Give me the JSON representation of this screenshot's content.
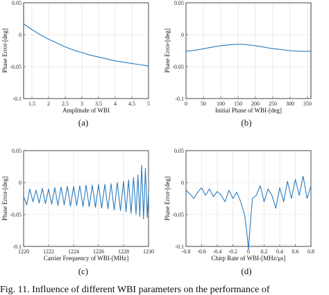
{
  "chart_data": [
    {
      "type": "line",
      "label": "(a)",
      "xlabel": "Amplitude of WBI",
      "ylabel": "Phase Error-[deg]",
      "xlim": [
        1.25,
        5
      ],
      "ylim": [
        -0.1,
        0.05
      ],
      "xticks": [
        "1.5",
        "2",
        "2.5",
        "3",
        "3.5",
        "4",
        "4.5",
        "5"
      ],
      "xtick_values": [
        1.5,
        2,
        2.5,
        3,
        3.5,
        4,
        4.5,
        5
      ],
      "yticks": [
        "0.05",
        "0",
        "-0.05",
        "-0.1"
      ],
      "ytick_values": [
        0.05,
        0,
        -0.05,
        -0.1
      ],
      "grid": true,
      "series": [
        {
          "color": "#2a7bbf",
          "x": [
            1.25,
            1.5,
            1.75,
            2,
            2.25,
            2.5,
            2.75,
            3,
            3.25,
            3.5,
            3.75,
            4,
            4.25,
            4.5,
            4.75,
            5
          ],
          "y": [
            0.017,
            0.008,
            0.0,
            -0.007,
            -0.013,
            -0.019,
            -0.024,
            -0.028,
            -0.032,
            -0.035,
            -0.038,
            -0.041,
            -0.043,
            -0.045,
            -0.047,
            -0.049
          ]
        }
      ]
    },
    {
      "type": "line",
      "label": "(b)",
      "xlabel": "Initial Phase of WBI-[deg]",
      "ylabel": "Phase Error-[deg]",
      "xlim": [
        0,
        360
      ],
      "ylim": [
        -0.1,
        0.05
      ],
      "xticks": [
        "0",
        "50",
        "100",
        "150",
        "200",
        "250",
        "300",
        "350"
      ],
      "xtick_values": [
        0,
        50,
        100,
        150,
        200,
        250,
        300,
        350
      ],
      "yticks": [
        "0.05",
        "0",
        "-0.05",
        "-0.1"
      ],
      "ytick_values": [
        0.05,
        0,
        -0.05,
        -0.1
      ],
      "grid": true,
      "series": [
        {
          "color": "#2a7bbf",
          "x": [
            0,
            30,
            60,
            90,
            120,
            150,
            165,
            180,
            210,
            240,
            270,
            300,
            330,
            360
          ],
          "y": [
            -0.026,
            -0.024,
            -0.021,
            -0.018,
            -0.016,
            -0.015,
            -0.015,
            -0.016,
            -0.018,
            -0.021,
            -0.023,
            -0.025,
            -0.026,
            -0.026
          ]
        }
      ]
    },
    {
      "type": "line",
      "label": "(c)",
      "xlabel": "Carrier Frequency of WBI-[MHz]",
      "ylabel": "Phase Error-[deg]",
      "xlim": [
        1220,
        1230
      ],
      "ylim": [
        -0.1,
        0.05
      ],
      "xticks": [
        "1220",
        "1222",
        "1224",
        "1226",
        "1228",
        "1230"
      ],
      "xtick_values": [
        1220,
        1222,
        1224,
        1226,
        1228,
        1230
      ],
      "yticks": [
        "0.05",
        "0",
        "-0.05",
        "-0.1"
      ],
      "ytick_values": [
        0.05,
        0,
        -0.05,
        -0.1
      ],
      "grid": true,
      "series": [
        {
          "color": "#2a7bbf",
          "x": [
            1220,
            1220.25,
            1220.5,
            1220.75,
            1221,
            1221.25,
            1221.5,
            1221.75,
            1222,
            1222.25,
            1222.5,
            1222.75,
            1223,
            1223.25,
            1223.5,
            1223.75,
            1224,
            1224.25,
            1224.5,
            1224.75,
            1225,
            1225.25,
            1225.5,
            1225.75,
            1226,
            1226.25,
            1226.5,
            1226.75,
            1227,
            1227.25,
            1227.5,
            1227.75,
            1228,
            1228.2,
            1228.4,
            1228.6,
            1228.8,
            1229,
            1229.15,
            1229.3,
            1229.45,
            1229.6,
            1229.75,
            1229.9,
            1230
          ],
          "y": [
            -0.022,
            -0.035,
            -0.01,
            -0.03,
            -0.012,
            -0.032,
            -0.009,
            -0.033,
            -0.01,
            -0.034,
            -0.008,
            -0.036,
            -0.007,
            -0.035,
            -0.006,
            -0.037,
            -0.006,
            -0.036,
            -0.005,
            -0.038,
            -0.004,
            -0.038,
            -0.004,
            -0.039,
            -0.003,
            -0.04,
            -0.003,
            -0.041,
            -0.002,
            -0.043,
            0.0,
            -0.044,
            0.002,
            -0.046,
            0.004,
            -0.048,
            0.008,
            -0.05,
            0.012,
            -0.053,
            0.027,
            -0.057,
            0.022,
            -0.055,
            -0.015
          ]
        }
      ]
    },
    {
      "type": "line",
      "label": "(d)",
      "xlabel": "Chirp Rate of WBI-[MHz/μs]",
      "ylabel": "Phase Error-[deg]",
      "xlim": [
        -0.8,
        0.8
      ],
      "ylim": [
        -0.1,
        0.05
      ],
      "xticks": [
        "-0.8",
        "-0.6",
        "-0.4",
        "-0.2",
        "0",
        "0.2",
        "0.4",
        "0.6",
        "0.8"
      ],
      "xtick_values": [
        -0.8,
        -0.6,
        -0.4,
        -0.2,
        0,
        0.2,
        0.4,
        0.6,
        0.8
      ],
      "yticks": [
        "0.05",
        "0",
        "-0.05",
        "-0.1"
      ],
      "ytick_values": [
        0.05,
        0,
        -0.05,
        -0.1
      ],
      "grid": true,
      "series": [
        {
          "color": "#2a7bbf",
          "x": [
            -0.8,
            -0.75,
            -0.7,
            -0.65,
            -0.6,
            -0.55,
            -0.5,
            -0.45,
            -0.4,
            -0.35,
            -0.3,
            -0.25,
            -0.2,
            -0.15,
            -0.1,
            -0.05,
            -0.02,
            0,
            0.02,
            0.05,
            0.1,
            0.15,
            0.2,
            0.25,
            0.3,
            0.35,
            0.4,
            0.45,
            0.5,
            0.55,
            0.6,
            0.65,
            0.7,
            0.75,
            0.8
          ],
          "y": [
            -0.012,
            -0.018,
            -0.025,
            -0.015,
            -0.008,
            -0.02,
            -0.01,
            -0.022,
            -0.014,
            -0.02,
            -0.03,
            -0.012,
            -0.025,
            -0.015,
            -0.03,
            -0.05,
            -0.08,
            -0.105,
            -0.07,
            -0.025,
            -0.02,
            -0.005,
            -0.03,
            -0.01,
            -0.02,
            -0.04,
            -0.008,
            -0.03,
            0.002,
            -0.025,
            0.005,
            -0.02,
            0.01,
            -0.025,
            -0.005
          ]
        }
      ]
    }
  ],
  "caption": "Fig. 11.   Influence of different WBI parameters on the performance of"
}
